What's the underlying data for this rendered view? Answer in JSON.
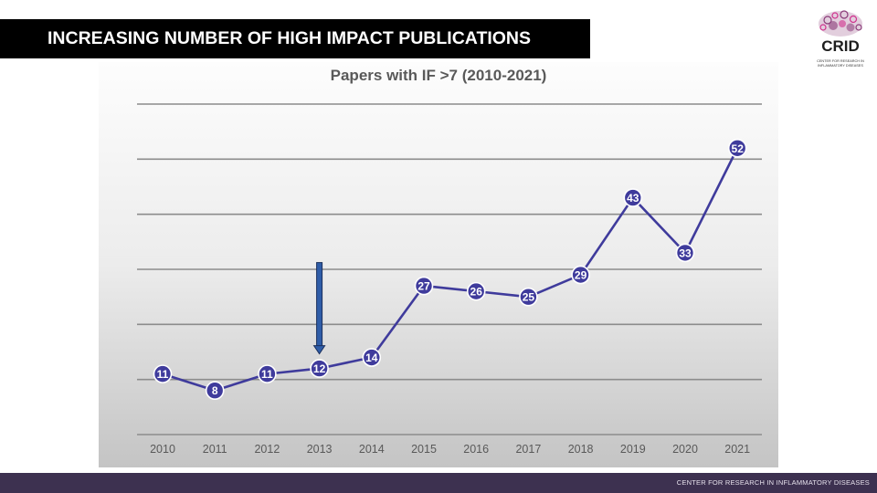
{
  "slide": {
    "title": "INCREASING NUMBER OF HIGH IMPACT PUBLICATIONS",
    "footer": "CENTER FOR RESEARCH IN INFLAMMATORY DISEASES"
  },
  "logo": {
    "name": "CRID",
    "subtitle_line1": "CENTER FOR RESEARCH IN",
    "subtitle_line2": "INFLAMMATORY DISEASES",
    "colors": {
      "purple": "#8a3a78",
      "pink": "#d0308d",
      "dark": "#1e1e1e"
    }
  },
  "chart_data": {
    "type": "line",
    "title": "Papers with IF >7 (2010-2021)",
    "categories": [
      "2010",
      "2011",
      "2012",
      "2013",
      "2014",
      "2015",
      "2016",
      "2017",
      "2018",
      "2019",
      "2020",
      "2021"
    ],
    "series": [
      {
        "values": [
          11,
          8,
          11,
          12,
          14,
          27,
          26,
          25,
          29,
          43,
          33,
          52
        ],
        "color": "#3f3b9c"
      }
    ],
    "data_labels": true,
    "ylim": [
      0,
      60
    ],
    "gridlines": true,
    "annotation": {
      "type": "arrow-down",
      "at_category": "2013",
      "color": "#2f5da8"
    }
  }
}
